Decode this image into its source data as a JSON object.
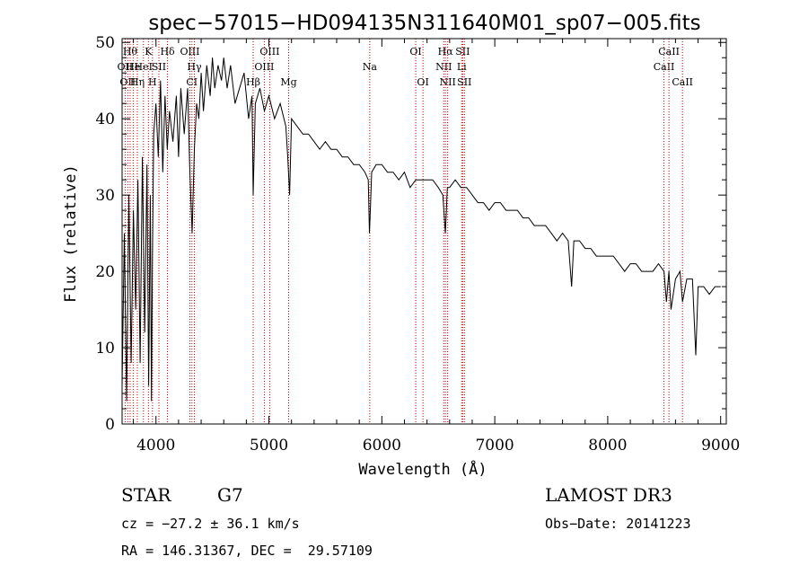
{
  "chart_data": {
    "type": "line",
    "title": "spec−57015−HD094135N311640M01_sp07−005.fits",
    "xlabel": "Wavelength (Å)",
    "ylabel": "Flux (relative)",
    "xlim": [
      3700,
      9050
    ],
    "ylim": [
      0,
      50.5
    ],
    "xticks": [
      4000,
      5000,
      6000,
      7000,
      8000,
      9000
    ],
    "xtick_labels": [
      "4000",
      "5000",
      "6000",
      "7000",
      "8000",
      "9000"
    ],
    "yticks": [
      0,
      10,
      20,
      30,
      40,
      50
    ],
    "ytick_labels": [
      "0",
      "10",
      "20",
      "30",
      "40",
      "50"
    ],
    "line_color": "#000000",
    "marker_color": "#c00000",
    "series": [
      {
        "name": "spectrum",
        "x": [
          3700,
          3720,
          3740,
          3760,
          3780,
          3800,
          3820,
          3840,
          3860,
          3880,
          3900,
          3920,
          3935,
          3950,
          3960,
          3969,
          3980,
          4000,
          4020,
          4040,
          4060,
          4080,
          4100,
          4120,
          4150,
          4180,
          4200,
          4220,
          4250,
          4280,
          4300,
          4320,
          4340,
          4360,
          4380,
          4400,
          4420,
          4450,
          4480,
          4500,
          4520,
          4550,
          4580,
          4600,
          4630,
          4660,
          4700,
          4740,
          4780,
          4820,
          4850,
          4861,
          4880,
          4920,
          4960,
          5000,
          5050,
          5100,
          5150,
          5167,
          5183,
          5200,
          5250,
          5300,
          5350,
          5400,
          5450,
          5500,
          5550,
          5600,
          5650,
          5700,
          5750,
          5800,
          5850,
          5880,
          5890,
          5896,
          5910,
          5950,
          6000,
          6050,
          6100,
          6150,
          6200,
          6250,
          6300,
          6350,
          6400,
          6450,
          6500,
          6540,
          6563,
          6580,
          6600,
          6650,
          6700,
          6750,
          6800,
          6850,
          6900,
          6950,
          7000,
          7050,
          7100,
          7150,
          7200,
          7250,
          7300,
          7350,
          7400,
          7450,
          7500,
          7550,
          7600,
          7650,
          7680,
          7700,
          7750,
          7800,
          7850,
          7900,
          7950,
          8000,
          8050,
          8100,
          8150,
          8200,
          8250,
          8300,
          8350,
          8400,
          8450,
          8498,
          8520,
          8542,
          8560,
          8600,
          8640,
          8662,
          8700,
          8750,
          8780,
          8800,
          8850,
          8900,
          8950,
          9000
        ],
        "y": [
          5,
          25,
          3,
          30,
          8,
          28,
          15,
          32,
          8,
          35,
          12,
          34,
          5,
          30,
          3,
          22,
          38,
          42,
          35,
          45,
          33,
          43,
          36,
          41,
          37,
          43,
          35,
          44,
          38,
          44,
          33,
          25,
          36,
          42,
          40,
          46,
          41,
          47,
          43,
          48,
          44,
          47,
          45,
          48,
          44,
          47,
          42,
          44,
          46,
          40,
          43,
          30,
          42,
          44,
          41,
          43,
          40,
          42,
          39,
          35,
          30,
          40,
          39,
          38,
          38,
          37,
          36,
          37,
          36,
          36,
          35,
          35,
          34,
          34,
          33,
          32,
          25,
          27,
          33,
          34,
          34,
          33,
          33,
          32,
          33,
          31,
          32,
          32,
          32,
          32,
          31,
          30,
          25,
          31,
          31,
          32,
          31,
          31,
          30,
          29,
          29,
          28,
          29,
          29,
          28,
          28,
          28,
          27,
          27,
          26,
          26,
          26,
          25,
          24,
          25,
          24,
          18,
          24,
          24,
          23,
          23,
          22,
          22,
          22,
          22,
          21,
          20,
          21,
          21,
          20,
          20,
          20,
          21,
          20,
          16,
          20,
          15,
          19,
          20,
          16,
          19,
          19,
          9,
          18,
          18,
          17,
          18,
          18
        ]
      }
    ],
    "line_markers": [
      {
        "x": 3727,
        "label": "OII",
        "row": 2
      },
      {
        "x": 3750,
        "label": "OII",
        "row": 3
      },
      {
        "x": 3771,
        "label": "Hθ",
        "row": 1
      },
      {
        "x": 3798,
        "label": "He",
        "row": 2
      },
      {
        "x": 3835,
        "label": "Hη",
        "row": 3
      },
      {
        "x": 3889,
        "label": "HeI",
        "row": 2
      },
      {
        "x": 3933,
        "label": "K",
        "row": 1
      },
      {
        "x": 3969,
        "label": "H",
        "row": 3
      },
      {
        "x": 4026,
        "label": "SII",
        "row": 2
      },
      {
        "x": 4102,
        "label": "Hδ",
        "row": 1
      },
      {
        "x": 4300,
        "label": "OIII",
        "row": 1
      },
      {
        "x": 4318,
        "label": "CI",
        "row": 3
      },
      {
        "x": 4340,
        "label": "Hγ",
        "row": 2
      },
      {
        "x": 4861,
        "label": "Hβ",
        "row": 3
      },
      {
        "x": 4959,
        "label": "OIII",
        "row": 2
      },
      {
        "x": 5007,
        "label": "OIII",
        "row": 1
      },
      {
        "x": 5175,
        "label": "Mg",
        "row": 3
      },
      {
        "x": 5893,
        "label": "Na",
        "row": 2
      },
      {
        "x": 6300,
        "label": "OI",
        "row": 1
      },
      {
        "x": 6364,
        "label": "OI",
        "row": 3
      },
      {
        "x": 6548,
        "label": "NII",
        "row": 2
      },
      {
        "x": 6563,
        "label": "Hα",
        "row": 1
      },
      {
        "x": 6583,
        "label": "NII",
        "row": 3
      },
      {
        "x": 6707,
        "label": "Li",
        "row": 2
      },
      {
        "x": 6716,
        "label": "SII",
        "row": 1
      },
      {
        "x": 6731,
        "label": "SII",
        "row": 3
      },
      {
        "x": 8498,
        "label": "CaII",
        "row": 2
      },
      {
        "x": 8542,
        "label": "CaII",
        "row": 1
      },
      {
        "x": 8662,
        "label": "CaII",
        "row": 3
      }
    ]
  },
  "info": {
    "object_type": "STAR",
    "subclass": "G7",
    "survey": "LAMOST DR3",
    "redshift": "cz = −27.2 ± 36.1 km/s",
    "obs_date": "Obs−Date: 20141223",
    "coords": "RA = 146.31367, DEC =  29.57109"
  }
}
